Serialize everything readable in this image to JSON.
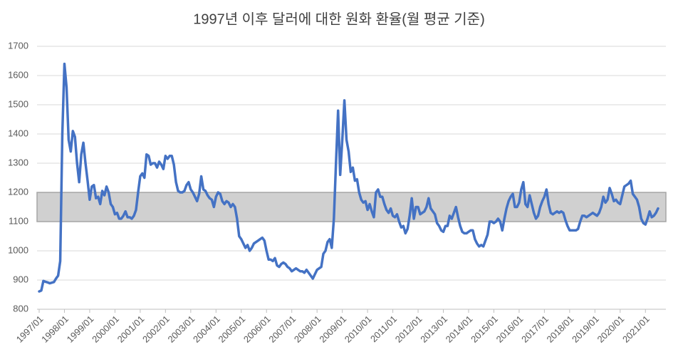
{
  "chart_data": {
    "type": "line",
    "title": "1997년 이후 달러에 대한 원화 환율(월 평균 기준)",
    "color": "#4472c4",
    "grid": true,
    "band": {
      "from": 1100,
      "to": 1200,
      "color": "#d0d0d0"
    },
    "ylim": [
      800,
      1700
    ],
    "yticks": [
      800,
      900,
      1000,
      1100,
      1200,
      1300,
      1400,
      1500,
      1600,
      1700
    ],
    "categories": [
      "1997/01",
      null,
      null,
      null,
      null,
      null,
      null,
      null,
      null,
      null,
      null,
      null,
      "1998/01",
      null,
      null,
      null,
      null,
      null,
      null,
      null,
      null,
      null,
      null,
      null,
      "1999/01",
      null,
      null,
      null,
      null,
      null,
      null,
      null,
      null,
      null,
      null,
      null,
      "2000/01",
      null,
      null,
      null,
      null,
      null,
      null,
      null,
      null,
      null,
      null,
      null,
      "2001/01",
      null,
      null,
      null,
      null,
      null,
      null,
      null,
      null,
      null,
      null,
      null,
      "2002/01",
      null,
      null,
      null,
      null,
      null,
      null,
      null,
      null,
      null,
      null,
      null,
      "2003/01",
      null,
      null,
      null,
      null,
      null,
      null,
      null,
      null,
      null,
      null,
      null,
      "2004/01",
      null,
      null,
      null,
      null,
      null,
      null,
      null,
      null,
      null,
      null,
      null,
      "2005/01",
      null,
      null,
      null,
      null,
      null,
      null,
      null,
      null,
      null,
      null,
      null,
      "2006/01",
      null,
      null,
      null,
      null,
      null,
      null,
      null,
      null,
      null,
      null,
      null,
      "2007/01",
      null,
      null,
      null,
      null,
      null,
      null,
      null,
      null,
      null,
      null,
      null,
      "2008/01",
      null,
      null,
      null,
      null,
      null,
      null,
      null,
      null,
      null,
      null,
      null,
      "2009/01",
      null,
      null,
      null,
      null,
      null,
      null,
      null,
      null,
      null,
      null,
      null,
      "2010/01",
      null,
      null,
      null,
      null,
      null,
      null,
      null,
      null,
      null,
      null,
      null,
      "2011/01",
      null,
      null,
      null,
      null,
      null,
      null,
      null,
      null,
      null,
      null,
      null,
      "2012/01",
      null,
      null,
      null,
      null,
      null,
      null,
      null,
      null,
      null,
      null,
      null,
      "2013/01",
      null,
      null,
      null,
      null,
      null,
      null,
      null,
      null,
      null,
      null,
      null,
      "2014/01",
      null,
      null,
      null,
      null,
      null,
      null,
      null,
      null,
      null,
      null,
      null,
      "2015/01",
      null,
      null,
      null,
      null,
      null,
      null,
      null,
      null,
      null,
      null,
      null,
      "2016/01",
      null,
      null,
      null,
      null,
      null,
      null,
      null,
      null,
      null,
      null,
      null,
      "2017/01",
      null,
      null,
      null,
      null,
      null,
      null,
      null,
      null,
      null,
      null,
      null,
      "2018/01",
      null,
      null,
      null,
      null,
      null,
      null,
      null,
      null,
      null,
      null,
      null,
      "2019/01",
      null,
      null,
      null,
      null,
      null,
      null,
      null,
      null,
      null,
      null,
      null,
      "2020/01",
      null,
      null,
      null,
      null,
      null,
      null,
      null,
      null,
      null,
      null,
      null,
      "2021/01",
      null,
      null,
      null,
      null,
      null,
      null
    ],
    "values": [
      861,
      864,
      897,
      894,
      892,
      889,
      891,
      893,
      905,
      915,
      965,
      1400,
      1640,
      1560,
      1380,
      1340,
      1410,
      1390,
      1300,
      1235,
      1330,
      1370,
      1300,
      1240,
      1175,
      1220,
      1225,
      1180,
      1185,
      1160,
      1205,
      1190,
      1220,
      1200,
      1160,
      1150,
      1125,
      1130,
      1110,
      1110,
      1120,
      1135,
      1115,
      1115,
      1110,
      1120,
      1140,
      1200,
      1255,
      1265,
      1250,
      1330,
      1325,
      1295,
      1300,
      1300,
      1285,
      1305,
      1295,
      1280,
      1325,
      1315,
      1325,
      1325,
      1295,
      1235,
      1205,
      1200,
      1200,
      1205,
      1225,
      1235,
      1210,
      1200,
      1185,
      1170,
      1195,
      1255,
      1210,
      1205,
      1190,
      1180,
      1175,
      1150,
      1185,
      1200,
      1195,
      1170,
      1160,
      1170,
      1165,
      1150,
      1160,
      1150,
      1110,
      1050,
      1040,
      1025,
      1010,
      1020,
      1000,
      1010,
      1025,
      1030,
      1035,
      1040,
      1045,
      1035,
      1000,
      970,
      970,
      965,
      975,
      950,
      945,
      955,
      960,
      955,
      945,
      940,
      930,
      935,
      940,
      935,
      930,
      930,
      925,
      935,
      925,
      915,
      905,
      920,
      935,
      940,
      945,
      990,
      1000,
      1030,
      1040,
      1010,
      1110,
      1300,
      1480,
      1260,
      1380,
      1515,
      1380,
      1340,
      1270,
      1285,
      1240,
      1245,
      1200,
      1175,
      1165,
      1170,
      1140,
      1160,
      1135,
      1115,
      1200,
      1210,
      1185,
      1185,
      1160,
      1140,
      1130,
      1145,
      1120,
      1115,
      1125,
      1100,
      1080,
      1085,
      1060,
      1075,
      1120,
      1180,
      1110,
      1150,
      1150,
      1125,
      1130,
      1135,
      1150,
      1180,
      1145,
      1135,
      1125,
      1095,
      1085,
      1070,
      1065,
      1085,
      1085,
      1120,
      1110,
      1130,
      1150,
      1115,
      1085,
      1065,
      1060,
      1060,
      1065,
      1070,
      1070,
      1040,
      1025,
      1015,
      1020,
      1015,
      1035,
      1055,
      1100,
      1100,
      1095,
      1100,
      1110,
      1100,
      1070,
      1110,
      1145,
      1170,
      1185,
      1195,
      1150,
      1150,
      1165,
      1210,
      1235,
      1160,
      1150,
      1190,
      1160,
      1130,
      1110,
      1120,
      1150,
      1170,
      1185,
      1210,
      1160,
      1130,
      1125,
      1130,
      1135,
      1130,
      1135,
      1130,
      1105,
      1085,
      1070,
      1070,
      1070,
      1070,
      1075,
      1100,
      1120,
      1120,
      1115,
      1120,
      1125,
      1130,
      1125,
      1120,
      1130,
      1150,
      1185,
      1165,
      1175,
      1215,
      1195,
      1170,
      1175,
      1165,
      1160,
      1190,
      1220,
      1225,
      1230,
      1240,
      1195,
      1185,
      1175,
      1150,
      1110,
      1095,
      1090,
      1110,
      1135,
      1115,
      1120,
      1130,
      1145
    ]
  }
}
